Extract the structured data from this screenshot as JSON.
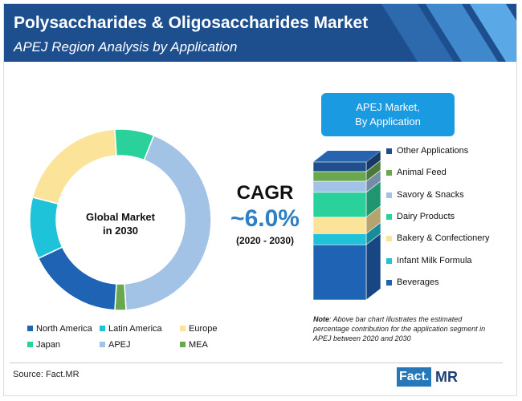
{
  "header": {
    "title": "Polysaccharides & Oligosaccharides Market",
    "subtitle": "APEJ Region Analysis by Application",
    "background": "#1d4f8f"
  },
  "donut": {
    "center_line1": "Global Market",
    "center_line2": "in 2030"
  },
  "cagr": {
    "label": "CAGR",
    "value": "~6.0%",
    "period": "(2020 - 2030)",
    "accent": "#2e7fc4"
  },
  "callout": {
    "line1": "APEJ Market,",
    "line2": "By Application",
    "color": "#1a9ae0"
  },
  "note": {
    "label": "Note",
    "text": ": Above bar chart illustrates the estimated percentage contribution for the application segment in APEJ between 2020 and 2030"
  },
  "footer": {
    "source": "Source: Fact.MR",
    "logo_left": "Fact.",
    "logo_right": "MR"
  },
  "chart_data": [
    {
      "type": "pie",
      "subtype": "donut",
      "title": "",
      "start": "MEA slice at the bottom, proceeding clockwise",
      "legend_position": "bottom",
      "series": [
        {
          "name": "MEA",
          "value": 2,
          "color": "#6aa84f"
        },
        {
          "name": "North America",
          "value": 17,
          "color": "#1f63b5"
        },
        {
          "name": "Latin America",
          "value": 11,
          "color": "#1fc3d9"
        },
        {
          "name": "Europe",
          "value": 20,
          "color": "#fbe49a"
        },
        {
          "name": "Japan",
          "value": 7,
          "color": "#2bd19a"
        },
        {
          "name": "APEJ",
          "value": 43,
          "color": "#a3c3e6"
        }
      ]
    },
    {
      "type": "bar",
      "subtype": "stacked-3d-column",
      "title": "",
      "legend_position": "right",
      "series": [
        {
          "name": "Other Applications",
          "value": 7,
          "color": "#1f4f8c"
        },
        {
          "name": "Animal Feed",
          "value": 7,
          "color": "#6aa84f"
        },
        {
          "name": "Savory & Snacks",
          "value": 8,
          "color": "#a3c3e6"
        },
        {
          "name": "Dairy Products",
          "value": 18,
          "color": "#2bd19a"
        },
        {
          "name": "Bakery & Confectionery",
          "value": 12,
          "color": "#fbe49a"
        },
        {
          "name": "Infant Milk Formula",
          "value": 8,
          "color": "#1fc3d9"
        },
        {
          "name": "Beverages",
          "value": 40,
          "color": "#1f63b5"
        }
      ]
    }
  ]
}
